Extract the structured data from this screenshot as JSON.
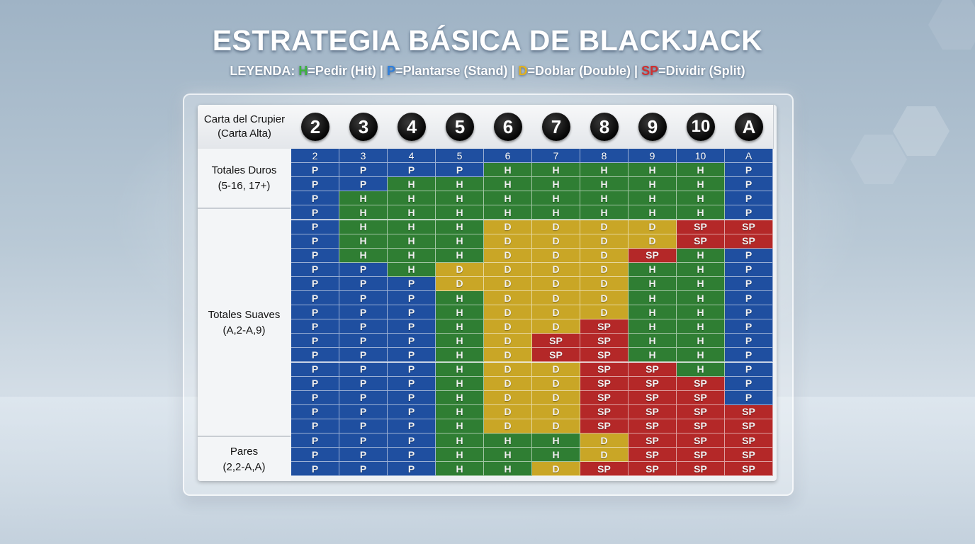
{
  "title": "ESTRATEGIA BÁSICA DE BLACKJACK",
  "legend": {
    "prefix": "LEYENDA: ",
    "h_key": "H",
    "h_text": "=Pedir (Hit) | ",
    "p_key": "P",
    "p_text": "=Plantarse (Stand) | ",
    "d_key": "D",
    "d_text": "=Doblar (Double) | ",
    "sp_key": "SP",
    "sp_text": "=Dividir (Split)"
  },
  "colors": {
    "P": "#1f4fa0",
    "H": "#2f7e33",
    "D": "#c9a626",
    "SP": "#b42828"
  },
  "corner": {
    "line1": "Carta del Crupier",
    "line2": "(Carta Alta)"
  },
  "dealer_cards": [
    "2",
    "3",
    "4",
    "5",
    "6",
    "7",
    "8",
    "9",
    "10",
    "A"
  ],
  "groups": [
    {
      "line1": "Totales Duros",
      "line2": "(5-16, 17+)"
    },
    {
      "line1": "Totales Suaves",
      "line2": "(A,2-A,9)"
    },
    {
      "line1": "Pares",
      "line2": "(2,2-A,A)"
    }
  ],
  "header_row": [
    "2",
    "3",
    "4",
    "5",
    "6",
    "7",
    "8",
    "9",
    "10",
    "A"
  ],
  "rows": [
    [
      "P",
      "P",
      "P",
      "P",
      "H",
      "H",
      "H",
      "H",
      "H",
      "P"
    ],
    [
      "P",
      "P",
      "H",
      "H",
      "H",
      "H",
      "H",
      "H",
      "H",
      "P"
    ],
    [
      "P",
      "H",
      "H",
      "H",
      "H",
      "H",
      "H",
      "H",
      "H",
      "P"
    ],
    [
      "P",
      "H",
      "H",
      "H",
      "H",
      "H",
      "H",
      "H",
      "H",
      "P"
    ],
    [
      "P",
      "H",
      "H",
      "H",
      "D",
      "D",
      "D",
      "D",
      "SP",
      "SP"
    ],
    [
      "P",
      "H",
      "H",
      "H",
      "D",
      "D",
      "D",
      "D",
      "SP",
      "SP"
    ],
    [
      "P",
      "H",
      "H",
      "H",
      "D",
      "D",
      "D",
      "SP",
      "H",
      "P"
    ],
    [
      "P",
      "P",
      "H",
      "D",
      "D",
      "D",
      "D",
      "H",
      "H",
      "P"
    ],
    [
      "P",
      "P",
      "P",
      "D",
      "D",
      "D",
      "D",
      "H",
      "H",
      "P"
    ],
    [
      "P",
      "P",
      "P",
      "H",
      "D",
      "D",
      "D",
      "H",
      "H",
      "P"
    ],
    [
      "P",
      "P",
      "P",
      "H",
      "D",
      "D",
      "D",
      "H",
      "H",
      "P"
    ],
    [
      "P",
      "P",
      "P",
      "H",
      "D",
      "D",
      "SP",
      "H",
      "H",
      "P"
    ],
    [
      "P",
      "P",
      "P",
      "H",
      "D",
      "SP",
      "SP",
      "H",
      "H",
      "P"
    ],
    [
      "P",
      "P",
      "P",
      "H",
      "D",
      "SP",
      "SP",
      "H",
      "H",
      "P"
    ],
    [
      "P",
      "P",
      "P",
      "H",
      "D",
      "D",
      "SP",
      "SP",
      "H",
      "P"
    ],
    [
      "P",
      "P",
      "P",
      "H",
      "D",
      "D",
      "SP",
      "SP",
      "SP",
      "P"
    ],
    [
      "P",
      "P",
      "P",
      "H",
      "D",
      "D",
      "SP",
      "SP",
      "SP",
      "P"
    ],
    [
      "P",
      "P",
      "P",
      "H",
      "D",
      "D",
      "SP",
      "SP",
      "SP",
      "SP"
    ],
    [
      "P",
      "P",
      "P",
      "H",
      "D",
      "D",
      "SP",
      "SP",
      "SP",
      "SP"
    ],
    [
      "P",
      "P",
      "P",
      "H",
      "H",
      "H",
      "D",
      "SP",
      "SP",
      "SP"
    ],
    [
      "P",
      "P",
      "P",
      "H",
      "H",
      "H",
      "D",
      "SP",
      "SP",
      "SP"
    ],
    [
      "P",
      "P",
      "P",
      "H",
      "H",
      "D",
      "SP",
      "SP",
      "SP",
      "SP"
    ]
  ]
}
